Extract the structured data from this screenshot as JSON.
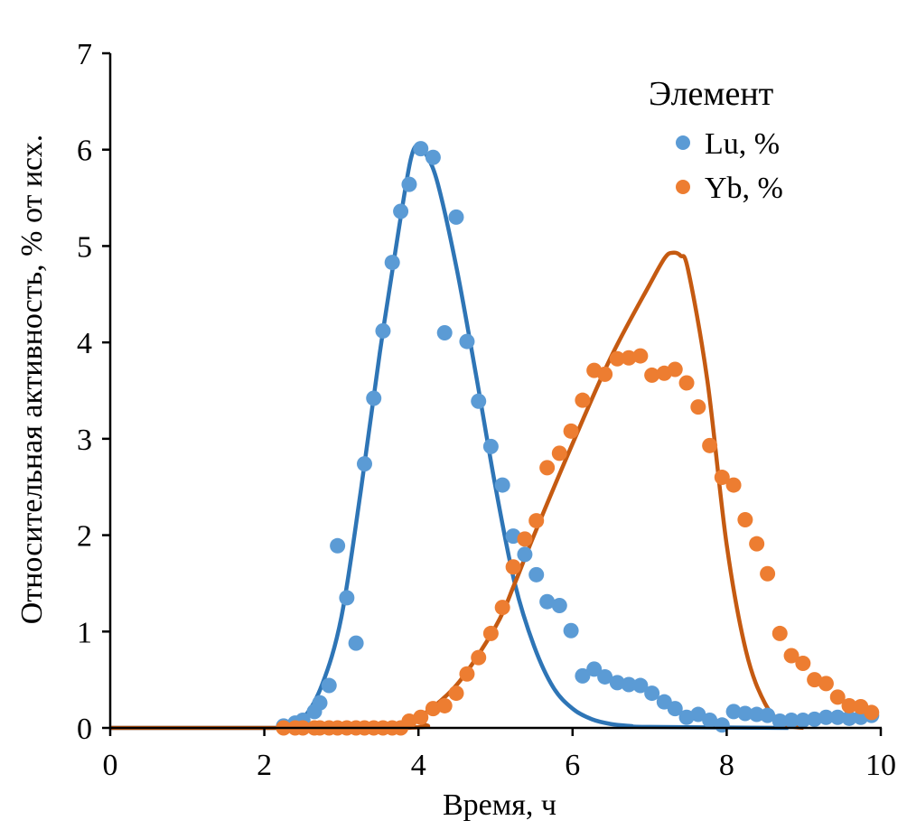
{
  "chart_data": {
    "type": "scatter",
    "title": "",
    "xlabel": "Время, ч",
    "ylabel": "Относительная активность, % от исх.",
    "xlim": [
      0,
      10
    ],
    "ylim": [
      0,
      7
    ],
    "xticks": [
      "0",
      "2",
      "4",
      "6",
      "8",
      "10"
    ],
    "yticks": [
      "0",
      "1",
      "2",
      "3",
      "4",
      "5",
      "6",
      "7"
    ],
    "grid": false,
    "legend": {
      "title": "Элемент",
      "placement": "top-right"
    },
    "series": [
      {
        "name": "Lu, %",
        "color": "#5b9bd5",
        "x": [
          2.25,
          2.4,
          2.5,
          2.65,
          2.72,
          2.84,
          2.95,
          3.07,
          3.19,
          3.3,
          3.42,
          3.54,
          3.66,
          3.77,
          3.88,
          4.03,
          4.19,
          4.34,
          4.49,
          4.63,
          4.78,
          4.94,
          5.09,
          5.23,
          5.38,
          5.53,
          5.67,
          5.83,
          5.98,
          6.13,
          6.28,
          6.42,
          6.58,
          6.73,
          6.88,
          7.03,
          7.19,
          7.33,
          7.48,
          7.63,
          7.78,
          7.94,
          8.09,
          8.24,
          8.39,
          8.53,
          8.69,
          8.84,
          8.99,
          9.14,
          9.29,
          9.44,
          9.59,
          9.74,
          9.88
        ],
        "y": [
          0.02,
          0.05,
          0.08,
          0.17,
          0.26,
          0.44,
          1.89,
          1.35,
          0.88,
          2.74,
          3.42,
          4.12,
          4.83,
          5.36,
          5.64,
          6.01,
          5.92,
          4.1,
          5.3,
          4.01,
          3.39,
          2.92,
          2.52,
          1.99,
          1.8,
          1.59,
          1.31,
          1.27,
          1.01,
          0.54,
          0.61,
          0.53,
          0.47,
          0.45,
          0.44,
          0.36,
          0.27,
          0.2,
          0.11,
          0.14,
          0.08,
          0.03,
          0.17,
          0.15,
          0.14,
          0.13,
          0.07,
          0.08,
          0.08,
          0.09,
          0.11,
          0.11,
          0.1,
          0.11,
          0.13
        ]
      },
      {
        "name": "Yb, %",
        "color": "#ed7d31",
        "x": [
          2.25,
          2.4,
          2.5,
          2.65,
          2.72,
          2.84,
          2.95,
          3.07,
          3.19,
          3.3,
          3.42,
          3.54,
          3.66,
          3.77,
          3.88,
          4.03,
          4.19,
          4.34,
          4.49,
          4.63,
          4.78,
          4.94,
          5.09,
          5.23,
          5.38,
          5.53,
          5.67,
          5.83,
          5.98,
          6.13,
          6.28,
          6.42,
          6.58,
          6.73,
          6.88,
          7.03,
          7.19,
          7.33,
          7.48,
          7.63,
          7.78,
          7.94,
          8.09,
          8.24,
          8.39,
          8.53,
          8.69,
          8.84,
          8.99,
          9.14,
          9.29,
          9.44,
          9.59,
          9.74,
          9.88
        ],
        "y": [
          0,
          0,
          0,
          0,
          0,
          0,
          0,
          0,
          0,
          0,
          0,
          0,
          0,
          0,
          0.07,
          0.11,
          0.2,
          0.23,
          0.36,
          0.56,
          0.73,
          0.98,
          1.25,
          1.67,
          1.96,
          2.15,
          2.7,
          2.85,
          3.08,
          3.4,
          3.71,
          3.67,
          3.83,
          3.84,
          3.86,
          3.66,
          3.68,
          3.72,
          3.58,
          3.33,
          2.93,
          2.6,
          2.52,
          2.16,
          1.91,
          1.6,
          0.98,
          0.75,
          0.67,
          0.5,
          0.46,
          0.32,
          0.23,
          0.22,
          0.16
        ]
      }
    ],
    "fits": [
      {
        "name": "Lu fit",
        "color": "#2e75b6",
        "x": [
          0,
          2.2,
          2.5,
          2.75,
          3.0,
          3.25,
          3.5,
          3.75,
          3.9,
          4.0,
          4.1,
          4.25,
          4.5,
          4.75,
          5.0,
          5.25,
          5.5,
          5.75,
          6.0,
          6.25,
          6.5,
          6.75,
          7.0,
          8.8
        ],
        "y": [
          0,
          0,
          0.1,
          0.45,
          1.15,
          2.45,
          3.9,
          5.2,
          5.9,
          6.05,
          5.95,
          5.65,
          4.75,
          3.65,
          2.5,
          1.5,
          0.85,
          0.42,
          0.2,
          0.09,
          0.04,
          0.02,
          0.01,
          0
        ]
      },
      {
        "name": "Yb fit",
        "color": "#c55a11",
        "x": [
          0,
          3.8,
          4.0,
          4.5,
          5.0,
          5.25,
          5.5,
          6.0,
          6.5,
          7.0,
          7.2,
          7.3,
          7.4,
          7.5,
          7.75,
          8.0,
          8.25,
          8.5,
          8.75,
          9.0
        ],
        "y": [
          0,
          0,
          0.1,
          0.45,
          1.05,
          1.5,
          2.0,
          2.95,
          3.85,
          4.6,
          4.88,
          4.93,
          4.9,
          4.75,
          3.6,
          1.9,
          0.8,
          0.25,
          0.04,
          0
        ]
      }
    ]
  }
}
